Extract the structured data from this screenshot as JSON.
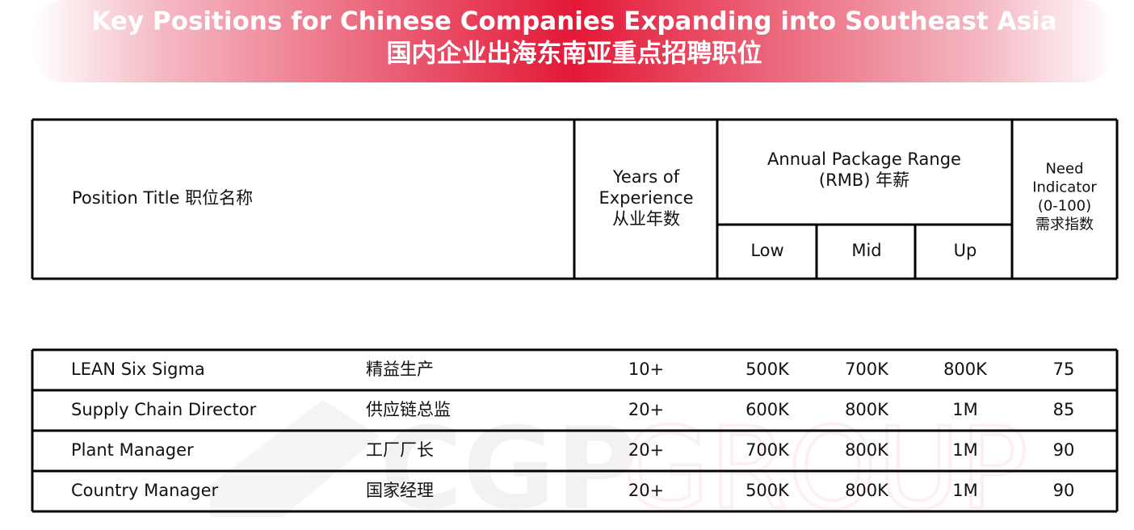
{
  "header": {
    "title": "Key Positions for Chinese Companies Expanding into Southeast Asia",
    "subtitle": "国内企业出海东南亚重点招聘职位"
  },
  "watermark": {
    "left": "CGP",
    "right": "GROUP"
  },
  "table": {
    "headers": {
      "position": "Position Title 职位名称",
      "experience": [
        "Years of",
        "Experience",
        "从业年数"
      ],
      "package": [
        "Annual Package Range",
        "(RMB) 年薪"
      ],
      "low": "Low",
      "mid": "Mid",
      "up": "Up",
      "need": [
        "Need",
        "Indicator",
        "(0-100)",
        "需求指数"
      ]
    },
    "rows": [
      [
        "LEAN Six Sigma",
        "精益生产",
        "10+",
        "500K",
        "700K",
        "800K",
        75
      ],
      [
        "Supply Chain Director",
        "供应链总监",
        "20+",
        "600K",
        "800K",
        "1M",
        85
      ],
      [
        "Plant Manager",
        "工厂厂长",
        "20+",
        "700K",
        "800K",
        "1M",
        90
      ],
      [
        "Country Manager",
        "国家经理",
        "20+",
        "500K",
        "800K",
        "1M",
        90
      ]
    ]
  }
}
